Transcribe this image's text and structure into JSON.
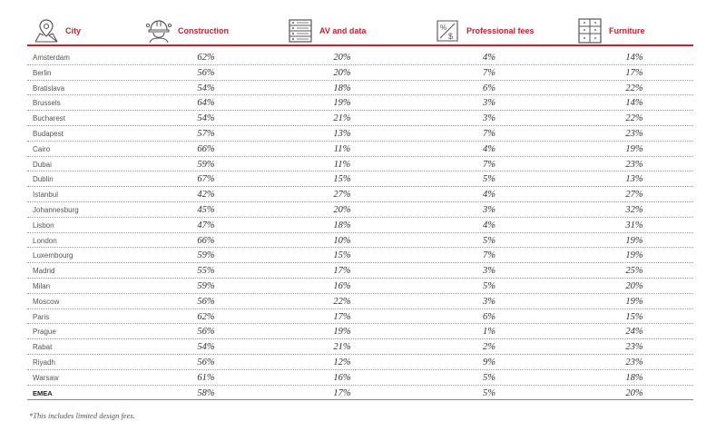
{
  "header": {
    "city_label": "City",
    "construction_label": "Construction",
    "av_label": "AV and data",
    "professional_label": "Professional fees",
    "furniture_label": "Furniture",
    "accent_color": "#cc1f2e",
    "icons": {
      "city": "map-pin-icon",
      "construction": "hard-hat-icon",
      "av": "server-icon",
      "professional": "percent-document-icon",
      "furniture": "cabinet-icon"
    }
  },
  "rows": [
    {
      "city": "Amsterdam",
      "construction": "62%",
      "av": "20%",
      "professional": "4%",
      "furniture": "14%"
    },
    {
      "city": "Berlin",
      "construction": "56%",
      "av": "20%",
      "professional": "7%",
      "furniture": "17%"
    },
    {
      "city": "Bratislava",
      "construction": "54%",
      "av": "18%",
      "professional": "6%",
      "furniture": "22%"
    },
    {
      "city": "Brussels",
      "construction": "64%",
      "av": "19%",
      "professional": "3%",
      "furniture": "14%"
    },
    {
      "city": "Bucharest",
      "construction": "54%",
      "av": "21%",
      "professional": "3%",
      "furniture": "22%"
    },
    {
      "city": "Budapest",
      "construction": "57%",
      "av": "13%",
      "professional": "7%",
      "furniture": "23%"
    },
    {
      "city": "Cairo",
      "construction": "66%",
      "av": "11%",
      "professional": "4%",
      "furniture": "19%"
    },
    {
      "city": "Dubai",
      "construction": "59%",
      "av": "11%",
      "professional": "7%",
      "furniture": "23%"
    },
    {
      "city": "Dublin",
      "construction": "67%",
      "av": "15%",
      "professional": "5%",
      "furniture": "13%"
    },
    {
      "city": "Istanbul",
      "construction": "42%",
      "av": "27%",
      "professional": "4%",
      "furniture": "27%"
    },
    {
      "city": "Johannesburg",
      "construction": "45%",
      "av": "20%",
      "professional": "3%",
      "furniture": "32%"
    },
    {
      "city": "Lisbon",
      "construction": "47%",
      "av": "18%",
      "professional": "4%",
      "furniture": "31%"
    },
    {
      "city": "London",
      "construction": "66%",
      "av": "10%",
      "professional": "5%",
      "furniture": "19%"
    },
    {
      "city": "Luxembourg",
      "construction": "59%",
      "av": "15%",
      "professional": "7%",
      "furniture": "19%"
    },
    {
      "city": "Madrid",
      "construction": "55%",
      "av": "17%",
      "professional": "3%",
      "furniture": "25%"
    },
    {
      "city": "Milan",
      "construction": "59%",
      "av": "16%",
      "professional": "5%",
      "furniture": "20%"
    },
    {
      "city": "Moscow",
      "construction": "56%",
      "av": "22%",
      "professional": "3%",
      "furniture": "19%"
    },
    {
      "city": "Paris",
      "construction": "62%",
      "av": "17%",
      "professional": "6%",
      "furniture": "15%"
    },
    {
      "city": "Prague",
      "construction": "56%",
      "av": "19%",
      "professional": "1%",
      "furniture": "24%"
    },
    {
      "city": "Rabat",
      "construction": "54%",
      "av": "21%",
      "professional": "2%",
      "furniture": "23%"
    },
    {
      "city": "Riyadh",
      "construction": "56%",
      "av": "12%",
      "professional": "9%",
      "furniture": "23%"
    },
    {
      "city": "Warsaw",
      "construction": "61%",
      "av": "16%",
      "professional": "5%",
      "furniture": "18%"
    },
    {
      "city": "EMEA",
      "construction": "58%",
      "av": "17%",
      "professional": "5%",
      "furniture": "20%"
    }
  ],
  "footnote": "*This includes limited design fees."
}
